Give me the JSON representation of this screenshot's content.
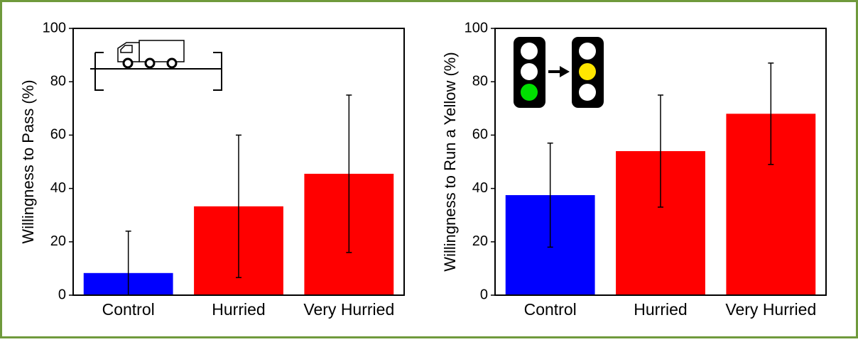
{
  "chart_data": [
    {
      "type": "bar",
      "ylabel": "Willingness to Pass (%)",
      "categories": [
        "Control",
        "Hurried",
        "Very Hurried"
      ],
      "values": [
        8.3,
        33.3,
        45.5
      ],
      "errors": [
        15.7,
        26.7,
        29.5
      ],
      "colors": [
        "#0000ff",
        "#ff0000",
        "#ff0000"
      ],
      "ylim": [
        0,
        100
      ],
      "yticks": [
        0,
        20,
        40,
        60,
        80,
        100
      ]
    },
    {
      "type": "bar",
      "ylabel": "Willingness to Run a Yellow (%)",
      "categories": [
        "Control",
        "Hurried",
        "Very Hurried"
      ],
      "values": [
        37.5,
        54,
        68
      ],
      "errors": [
        19.5,
        21,
        19
      ],
      "colors": [
        "#0000ff",
        "#ff0000",
        "#ff0000"
      ],
      "ylim": [
        0,
        100
      ],
      "yticks": [
        0,
        20,
        40,
        60,
        80,
        100
      ]
    }
  ]
}
